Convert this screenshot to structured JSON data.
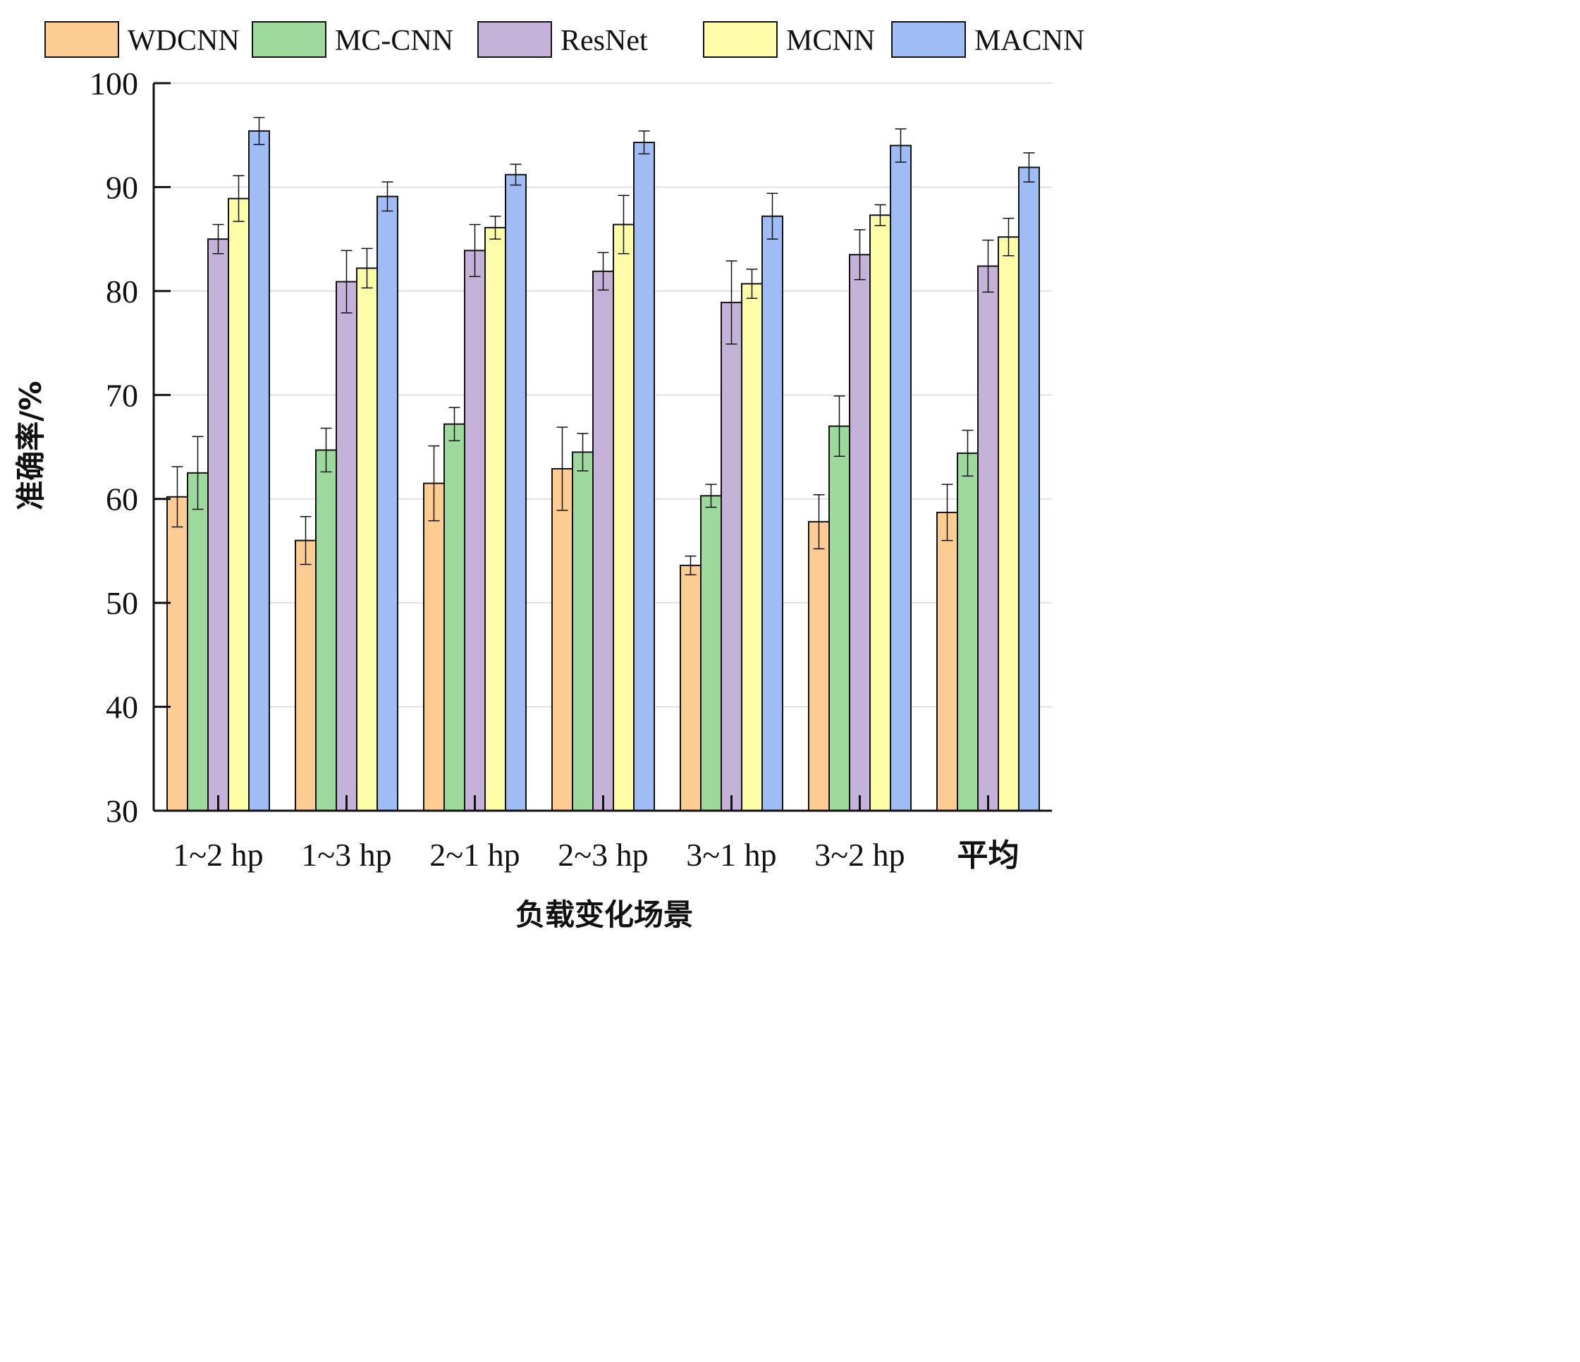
{
  "chart_data": {
    "type": "bar",
    "title": "",
    "xlabel": "负载变化场景",
    "ylabel": "准确率/%",
    "ylim": [
      30,
      100
    ],
    "yticks": [
      30,
      40,
      50,
      60,
      70,
      80,
      90,
      100
    ],
    "grid": "horizontal",
    "legend_position": "top",
    "categories": [
      "1~2 hp",
      "1~3 hp",
      "2~1 hp",
      "2~3 hp",
      "3~1 hp",
      "3~2 hp",
      "平均"
    ],
    "series": [
      {
        "name": "WDCNN",
        "color": "#FDCC92",
        "values": [
          60.2,
          56.0,
          61.5,
          62.9,
          53.6,
          57.8,
          58.7
        ],
        "errors": [
          2.9,
          2.3,
          3.6,
          4.0,
          0.9,
          2.6,
          2.7
        ]
      },
      {
        "name": "MC-CNN",
        "color": "#9DD89D",
        "values": [
          62.5,
          64.7,
          67.2,
          64.5,
          60.3,
          67.0,
          64.4
        ],
        "errors": [
          3.5,
          2.1,
          1.6,
          1.8,
          1.1,
          2.9,
          2.2
        ]
      },
      {
        "name": "ResNet",
        "color": "#C5B2D8",
        "values": [
          85.0,
          80.9,
          83.9,
          81.9,
          78.9,
          83.5,
          82.4
        ],
        "errors": [
          1.4,
          3.0,
          2.5,
          1.8,
          4.0,
          2.4,
          2.5
        ]
      },
      {
        "name": "MCNN",
        "color": "#FDFDA8",
        "values": [
          88.9,
          82.2,
          86.1,
          86.4,
          80.7,
          87.3,
          85.2
        ],
        "errors": [
          2.2,
          1.9,
          1.1,
          2.8,
          1.4,
          1.0,
          1.8
        ]
      },
      {
        "name": "MACNN",
        "color": "#A0BCF5",
        "values": [
          95.4,
          89.1,
          91.2,
          94.3,
          87.2,
          94.0,
          91.9
        ],
        "errors": [
          1.3,
          1.4,
          1.0,
          1.1,
          2.2,
          1.6,
          1.4
        ]
      }
    ]
  }
}
